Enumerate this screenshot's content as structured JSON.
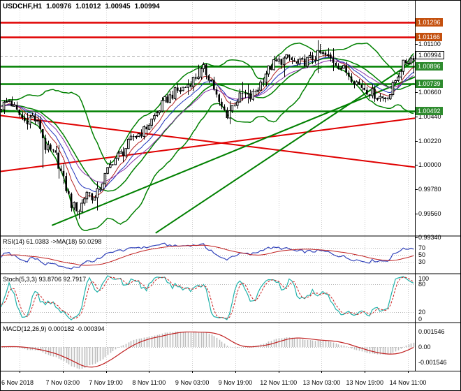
{
  "window": {
    "symbol_period": "USDCHF,H1",
    "open": "1.00976",
    "high": "1.01012",
    "low": "1.00945",
    "close": "1.00994"
  },
  "colors": {
    "background": "#FFFFFF",
    "grid": "#CFCFCF",
    "frame": "#000000",
    "separator": "#808080",
    "candle_outline": "#000000",
    "candle_bull_fill": "#FFFFFF",
    "candle_bear_fill": "#000000",
    "bollinger": "#008000",
    "trend_green": "#008000",
    "trend_red": "#E00000",
    "level_red": "#E00000",
    "level_red_label_bg": "#C4500E",
    "level_green": "#008000",
    "level_green_label_bg": "#2E8B2E",
    "rsi_line": "#3344BB",
    "rsi_ma": "#C02020",
    "stoch_k": "#20B2AA",
    "stoch_d": "#CC2222",
    "macd_hist": "#BDBDBD",
    "macd_signal": "#C02020"
  },
  "price_axis": {
    "plain_labels": [
      "1.01100",
      "1.00880",
      "1.00660",
      "1.00440",
      "1.00220",
      "1.00000",
      "0.99780",
      "0.99560",
      "0.99340"
    ],
    "current_price": "1.00994"
  },
  "time_axis": {
    "labels": [
      "6 Nov 2018",
      "7 Nov 03:00",
      "7 Nov 19:00",
      "8 Nov 11:00",
      "9 Nov 03:00",
      "9 Nov 19:00",
      "12 Nov 11:00",
      "13 Nov 03:00",
      "13 Nov 19:00",
      "14 Nov 11:00"
    ]
  },
  "panes": {
    "rsi": {
      "label": "RSI(14) 61.0383  ->MA(18) 50.0298",
      "axis_labels": [
        "70",
        "50",
        "30"
      ]
    },
    "stoch": {
      "label": "Stoch(5,3,3) 93.8706 92.7917",
      "axis_labels": [
        "100",
        "80",
        "20",
        "0"
      ]
    },
    "macd": {
      "label": "MACD(12,26,9) 0.000182 -0.000394",
      "axis_labels": [
        "0.001546",
        "0.00",
        "-0.001546"
      ]
    }
  },
  "chart_data": {
    "type": "candlestick",
    "symbol": "USDCHF",
    "timeframe": "H1",
    "bars": 160,
    "price_range": {
      "min": 0.9936,
      "max": 1.015
    },
    "close_anchors": [
      [
        0,
        1.0053
      ],
      [
        3,
        1.0059
      ],
      [
        6,
        1.0048
      ],
      [
        9,
        1.004
      ],
      [
        12,
        1.0044
      ],
      [
        15,
        1.0034
      ],
      [
        17,
        1.0016
      ],
      [
        21,
        1.0008
      ],
      [
        24,
        0.9986
      ],
      [
        27,
        0.9964
      ],
      [
        30,
        0.9959
      ],
      [
        33,
        0.9976
      ],
      [
        36,
        0.9969
      ],
      [
        39,
        0.9985
      ],
      [
        43,
        1.0004
      ],
      [
        47,
        1.0012
      ],
      [
        51,
        1.0026
      ],
      [
        55,
        1.0031
      ],
      [
        59,
        1.0044
      ],
      [
        63,
        1.0058
      ],
      [
        67,
        1.0066
      ],
      [
        71,
        1.0071
      ],
      [
        75,
        1.008
      ],
      [
        78,
        1.0087
      ],
      [
        81,
        1.0077
      ],
      [
        84,
        1.0055
      ],
      [
        87,
        1.0046
      ],
      [
        90,
        1.0057
      ],
      [
        93,
        1.0064
      ],
      [
        96,
        1.0061
      ],
      [
        99,
        1.007
      ],
      [
        102,
        1.0084
      ],
      [
        105,
        1.0092
      ],
      [
        108,
        1.0095
      ],
      [
        111,
        1.0097
      ],
      [
        114,
        1.0091
      ],
      [
        117,
        1.0094
      ],
      [
        120,
        1.0097
      ],
      [
        123,
        1.0101
      ],
      [
        126,
        1.0098
      ],
      [
        129,
        1.0093
      ],
      [
        132,
        1.0087
      ],
      [
        135,
        1.008
      ],
      [
        138,
        1.0073
      ],
      [
        141,
        1.0068
      ],
      [
        144,
        1.0064
      ],
      [
        147,
        1.0061
      ],
      [
        150,
        1.0065
      ],
      [
        152,
        1.0077
      ],
      [
        154,
        1.0088
      ],
      [
        156,
        1.0094
      ],
      [
        158,
        1.0097
      ],
      [
        159,
        1.0099
      ]
    ],
    "wick_events": [
      {
        "bar": 16,
        "type": "low",
        "price": 0.9997
      },
      {
        "bar": 30,
        "type": "low",
        "price": 0.9951
      },
      {
        "bar": 78,
        "type": "high",
        "price": 1.0092
      },
      {
        "bar": 123,
        "type": "high",
        "price": 1.011
      },
      {
        "bar": 148,
        "type": "low",
        "price": 1.0057
      }
    ],
    "noise": {
      "close": 0.00045,
      "wick": 0.0004
    },
    "horizontal_levels": [
      {
        "price": 1.01296,
        "label": "1.01296",
        "color": "red"
      },
      {
        "price": 1.01166,
        "label": "1.01166",
        "color": "red"
      },
      {
        "price": 1.00896,
        "label": "1.00896",
        "color": "green"
      },
      {
        "price": 1.00739,
        "label": "1.00739",
        "color": "green"
      },
      {
        "price": 1.00492,
        "label": "1.00492",
        "color": "green"
      }
    ],
    "trend_lines": [
      {
        "from": [
          0,
          1.0045
        ],
        "to": [
          160,
          0.9998
        ],
        "color": "red"
      },
      {
        "from": [
          0,
          0.9994
        ],
        "to": [
          160,
          1.00425
        ],
        "color": "red"
      },
      {
        "from": [
          20,
          0.9945
        ],
        "to": [
          160,
          1.008
        ],
        "color": "green"
      },
      {
        "from": [
          60,
          0.9938
        ],
        "to": [
          160,
          1.0095
        ],
        "color": "green"
      }
    ],
    "indicators": {
      "bollinger": {
        "period": 20,
        "dev": 2
      },
      "emas": [
        {
          "period": 8,
          "color": "#B22222"
        },
        {
          "period": 13,
          "color": "#2233BB"
        },
        {
          "period": 21,
          "color": "#8833AA"
        }
      ],
      "rsi": {
        "period": 14,
        "ma_period": 18,
        "levels": [
          70,
          50,
          30
        ]
      },
      "stoch": {
        "k": 5,
        "d": 3,
        "slowing": 3,
        "levels": [
          80,
          20
        ]
      },
      "macd": {
        "fast": 12,
        "slow": 26,
        "signal": 9
      }
    }
  }
}
